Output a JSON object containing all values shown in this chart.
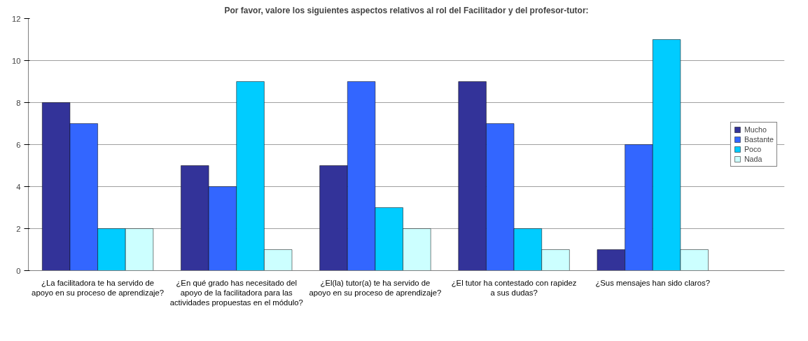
{
  "chart_data": {
    "type": "bar",
    "title": "Por favor, valore los siguientes aspectos relativos al rol del Facilitador y del profesor-tutor:",
    "categories": [
      "¿La facilitadora te ha servido de apoyo en su proceso de aprendizaje?",
      "¿En qué grado has necesitado del apoyo de la facilitadora para las actividades propuestas en el módulo?",
      "¿El(la) tutor(a) te ha servido de apoyo en su proceso de aprendizaje?",
      "¿El tutor ha contestado con rapidez a sus dudas?",
      "¿Sus mensajes han sido claros?"
    ],
    "series": [
      {
        "name": "Mucho",
        "color": "#333399",
        "values": [
          8,
          5,
          5,
          9,
          1
        ]
      },
      {
        "name": "Bastante",
        "color": "#3366ff",
        "values": [
          7,
          4,
          9,
          7,
          6
        ]
      },
      {
        "name": "Poco",
        "color": "#00ccff",
        "values": [
          2,
          9,
          3,
          2,
          11
        ]
      },
      {
        "name": "Nada",
        "color": "#ccffff",
        "values": [
          2,
          1,
          2,
          1,
          1
        ]
      }
    ],
    "ylim": [
      0,
      12
    ],
    "yticks": [
      0,
      2,
      4,
      6,
      8,
      10,
      12
    ],
    "grid": "y",
    "legend": "right"
  }
}
